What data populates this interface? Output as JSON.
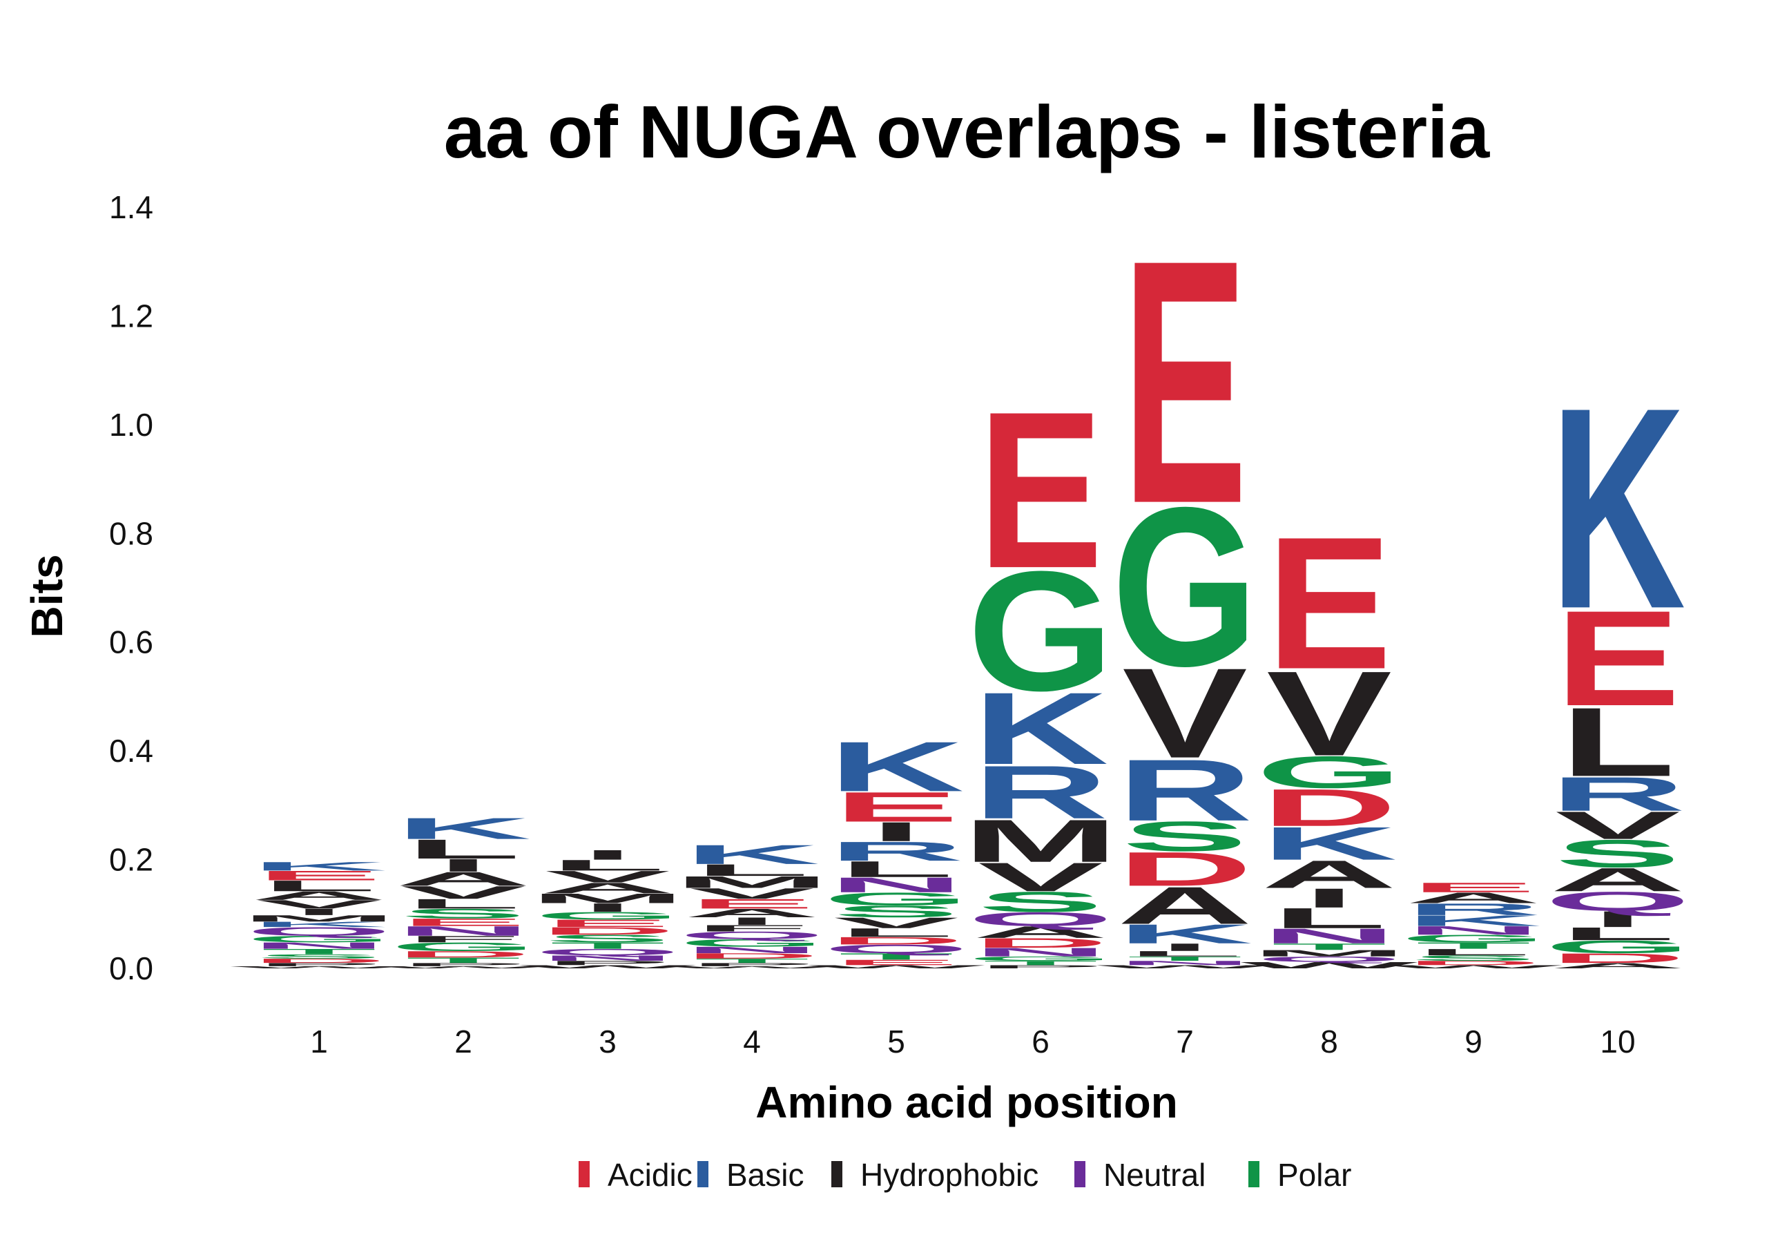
{
  "chart_data": {
    "type": "sequence-logo",
    "title": "aa of NUGA overlaps - listeria",
    "xlabel": "Amino acid position",
    "ylabel": "Bits",
    "ylim": [
      0,
      1.4
    ],
    "yticks": [
      "0.0",
      "0.2",
      "0.4",
      "0.6",
      "0.8",
      "1.0",
      "1.2",
      "1.4"
    ],
    "positions": [
      "1",
      "2",
      "3",
      "4",
      "5",
      "6",
      "7",
      "8",
      "9",
      "10"
    ],
    "legend": [
      {
        "name": "Acidic",
        "color": "#d62839"
      },
      {
        "name": "Basic",
        "color": "#2b5c9e"
      },
      {
        "name": "Hydrophobic",
        "color": "#231f20"
      },
      {
        "name": "Neutral",
        "color": "#6a2c9a"
      },
      {
        "name": "Polar",
        "color": "#0f9447"
      }
    ],
    "legend_position": "bottom",
    "colors": {
      "E": "#d62839",
      "D": "#d62839",
      "K": "#2b5c9e",
      "R": "#2b5c9e",
      "H": "#2b5c9e",
      "A": "#231f20",
      "V": "#231f20",
      "L": "#231f20",
      "I": "#231f20",
      "M": "#231f20",
      "F": "#231f20",
      "W": "#231f20",
      "P": "#231f20",
      "N": "#6a2c9a",
      "Q": "#6a2c9a",
      "G": "#0f9447",
      "S": "#0f9447",
      "T": "#0f9447",
      "Y": "#0f9447",
      "C": "#0f9447"
    },
    "stacks": [
      [
        [
          "W",
          0.004
        ],
        [
          "P",
          0.006
        ],
        [
          "D",
          0.008
        ],
        [
          "S",
          0.008
        ],
        [
          "T",
          0.01
        ],
        [
          "N",
          0.012
        ],
        [
          "G",
          0.012
        ],
        [
          "Q",
          0.016
        ],
        [
          "K",
          0.01
        ],
        [
          "M",
          0.012
        ],
        [
          "I",
          0.012
        ],
        [
          "V",
          0.016
        ],
        [
          "A",
          0.016
        ],
        [
          "L",
          0.02
        ],
        [
          "E",
          0.018
        ],
        [
          "K",
          0.016
        ]
      ],
      [
        [
          "W",
          0.004
        ],
        [
          "P",
          0.006
        ],
        [
          "T",
          0.01
        ],
        [
          "D",
          0.012
        ],
        [
          "G",
          0.016
        ],
        [
          "F",
          0.012
        ],
        [
          "N",
          0.018
        ],
        [
          "E",
          0.014
        ],
        [
          "S",
          0.018
        ],
        [
          "L",
          0.018
        ],
        [
          "V",
          0.024
        ],
        [
          "A",
          0.026
        ],
        [
          "I",
          0.024
        ],
        [
          "L",
          0.036
        ],
        [
          "K",
          0.04
        ]
      ],
      [
        [
          "W",
          0.006
        ],
        [
          "P",
          0.008
        ],
        [
          "N",
          0.01
        ],
        [
          "Q",
          0.012
        ],
        [
          "T",
          0.012
        ],
        [
          "S",
          0.014
        ],
        [
          "D",
          0.014
        ],
        [
          "E",
          0.014
        ],
        [
          "G",
          0.014
        ],
        [
          "I",
          0.016
        ],
        [
          "M",
          0.018
        ],
        [
          "A",
          0.02
        ],
        [
          "V",
          0.022
        ],
        [
          "L",
          0.02
        ],
        [
          "I",
          0.018
        ]
      ],
      [
        [
          "W",
          0.004
        ],
        [
          "P",
          0.006
        ],
        [
          "T",
          0.008
        ],
        [
          "D",
          0.01
        ],
        [
          "N",
          0.012
        ],
        [
          "G",
          0.014
        ],
        [
          "Q",
          0.014
        ],
        [
          "F",
          0.012
        ],
        [
          "I",
          0.014
        ],
        [
          "A",
          0.016
        ],
        [
          "E",
          0.018
        ],
        [
          "V",
          0.02
        ],
        [
          "M",
          0.022
        ],
        [
          "L",
          0.022
        ],
        [
          "K",
          0.036
        ]
      ],
      [
        [
          "W",
          0.006
        ],
        [
          "E",
          0.01
        ],
        [
          "T",
          0.012
        ],
        [
          "Q",
          0.016
        ],
        [
          "D",
          0.014
        ],
        [
          "L",
          0.016
        ],
        [
          "V",
          0.02
        ],
        [
          "S",
          0.022
        ],
        [
          "G",
          0.024
        ],
        [
          "N",
          0.028
        ],
        [
          "L",
          0.03
        ],
        [
          "R",
          0.036
        ],
        [
          "I",
          0.036
        ],
        [
          "E",
          0.056
        ],
        [
          "K",
          0.094
        ]
      ],
      [
        [
          "P",
          0.006
        ],
        [
          "T",
          0.008
        ],
        [
          "G",
          0.008
        ],
        [
          "N",
          0.016
        ],
        [
          "D",
          0.018
        ],
        [
          "A",
          0.022
        ],
        [
          "Q",
          0.026
        ],
        [
          "S",
          0.038
        ],
        [
          "V",
          0.054
        ],
        [
          "M",
          0.08
        ],
        [
          "R",
          0.1
        ],
        [
          "K",
          0.136
        ],
        [
          "G",
          0.226
        ],
        [
          "E",
          0.296
        ]
      ],
      [
        [
          "W",
          0.006
        ],
        [
          "N",
          0.008
        ],
        [
          "T",
          0.008
        ],
        [
          "L",
          0.01
        ],
        [
          "I",
          0.014
        ],
        [
          "K",
          0.036
        ],
        [
          "A",
          0.07
        ],
        [
          "D",
          0.064
        ],
        [
          "S",
          0.056
        ],
        [
          "R",
          0.116
        ],
        [
          "V",
          0.17
        ],
        [
          "G",
          0.3
        ],
        [
          "E",
          0.46
        ]
      ],
      [
        [
          "W",
          0.012
        ],
        [
          "Q",
          0.01
        ],
        [
          "M",
          0.012
        ],
        [
          "T",
          0.012
        ],
        [
          "N",
          0.028
        ],
        [
          "L",
          0.038
        ],
        [
          "I",
          0.036
        ],
        [
          "A",
          0.052
        ],
        [
          "K",
          0.062
        ],
        [
          "D",
          0.07
        ],
        [
          "G",
          0.06
        ],
        [
          "V",
          0.16
        ],
        [
          "E",
          0.25
        ]
      ],
      [
        [
          "W",
          0.006
        ],
        [
          "D",
          0.008
        ],
        [
          "S",
          0.01
        ],
        [
          "L",
          0.012
        ],
        [
          "T",
          0.012
        ],
        [
          "G",
          0.014
        ],
        [
          "N",
          0.016
        ],
        [
          "K",
          0.02
        ],
        [
          "R",
          0.022
        ],
        [
          "A",
          0.02
        ],
        [
          "E",
          0.018
        ]
      ],
      [
        [
          "A",
          0.01
        ],
        [
          "D",
          0.018
        ],
        [
          "G",
          0.024
        ],
        [
          "L",
          0.024
        ],
        [
          "I",
          0.03
        ],
        [
          "Q",
          0.036
        ],
        [
          "A",
          0.044
        ],
        [
          "S",
          0.052
        ],
        [
          "V",
          0.052
        ],
        [
          "R",
          0.064
        ],
        [
          "L",
          0.13
        ],
        [
          "E",
          0.18
        ],
        [
          "K",
          0.38
        ]
      ]
    ]
  }
}
